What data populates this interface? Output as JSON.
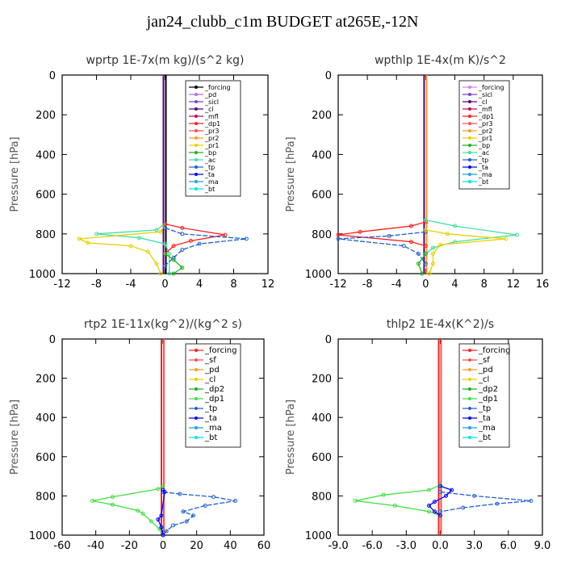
{
  "page": {
    "title": "jan24_clubb_c1m  BUDGET at265E,-12N"
  },
  "chart_data": [
    {
      "type": "line",
      "title": "wprtp   1E-7x(m kg)/(s^2 kg)",
      "ylabel": "Pressure [hPa]",
      "xlim": [
        -12,
        12
      ],
      "ylim": [
        1000,
        0
      ],
      "xticks": [
        "-12",
        "-8",
        "-4",
        "0",
        "4",
        "8"
      ],
      "yticks": [
        "0",
        "200",
        "400",
        "600",
        "800",
        "1000"
      ],
      "legend": [
        "_forcing",
        "_pd",
        "_sicl",
        "_cl",
        "_mfl",
        "_dp1",
        "_pr3",
        "_pr2",
        "_pr1",
        "_bp",
        "_ac",
        "_tp",
        "_ta",
        "_ma",
        "_bt"
      ],
      "colors": [
        "#000000",
        "#b070e0",
        "#7a3fd0",
        "#5a0080",
        "#c0104a",
        "#ff2020",
        "#ff5050",
        "#ff9a20",
        "#e8d000",
        "#20b020",
        "#40e0a0",
        "#2060d0",
        "#0000ff",
        "#20a0e0",
        "#00e8e8"
      ],
      "series": [
        {
          "name": "_ac",
          "points": [
            [
              0,
              750
            ],
            [
              -1,
              780
            ],
            [
              -8,
              800
            ],
            [
              -3,
              820
            ],
            [
              0,
              850
            ],
            [
              0.5,
              900
            ],
            [
              0.5,
              1000
            ]
          ]
        },
        {
          "name": "_pr1",
          "points": [
            [
              0,
              750
            ],
            [
              -0.5,
              790
            ],
            [
              -10,
              825
            ],
            [
              -9,
              845
            ],
            [
              -4,
              860
            ],
            [
              -2,
              890
            ],
            [
              -1,
              950
            ],
            [
              -0.5,
              1000
            ]
          ]
        },
        {
          "name": "_dp1",
          "points": [
            [
              0,
              750
            ],
            [
              2,
              770
            ],
            [
              7,
              805
            ],
            [
              3,
              835
            ],
            [
              1,
              860
            ],
            [
              0,
              900
            ]
          ]
        },
        {
          "name": "_tp",
          "points": [
            [
              0,
              770
            ],
            [
              2,
              800
            ],
            [
              9.5,
              825
            ],
            [
              4,
              850
            ],
            [
              2,
              880
            ],
            [
              1,
              920
            ],
            [
              0,
              960
            ]
          ]
        },
        {
          "name": "_bp",
          "points": [
            [
              0,
              900
            ],
            [
              1,
              930
            ],
            [
              2,
              970
            ],
            [
              1,
              1000
            ]
          ]
        }
      ]
    },
    {
      "type": "line",
      "title": "wpthlp   1E-4x(m K)/s^2",
      "ylabel": "Pressure [hPa]",
      "xlim": [
        -12,
        16
      ],
      "ylim": [
        1000,
        0
      ],
      "xticks": [
        "-12",
        "-8",
        "-4",
        "0",
        "4",
        "8",
        "12",
        "16"
      ],
      "yticks": [
        "0",
        "200",
        "400",
        "600",
        "800",
        "1000"
      ],
      "legend": [
        "_forcing",
        "_sicl",
        "_cl",
        "_mfl",
        "_dp1",
        "_pr3",
        "_pr2",
        "_pr1",
        "_bp",
        "_ac",
        "_tp",
        "_ta",
        "_ma",
        "_bt"
      ],
      "colors": [
        "#e080e0",
        "#7a3fd0",
        "#5a0080",
        "#c0104a",
        "#ff2020",
        "#ff5050",
        "#ff9a20",
        "#e8d000",
        "#20b020",
        "#40e0a0",
        "#2060d0",
        "#0000ff",
        "#20a0e0",
        "#00e8e8"
      ],
      "series": [
        {
          "name": "_dp1",
          "points": [
            [
              0,
              740
            ],
            [
              -2,
              760
            ],
            [
              -9,
              790
            ],
            [
              -12,
              805
            ],
            [
              -2,
              840
            ],
            [
              0,
              860
            ]
          ]
        },
        {
          "name": "_tp",
          "points": [
            [
              0,
              790
            ],
            [
              -5,
              810
            ],
            [
              -12,
              825
            ],
            [
              -3,
              860
            ],
            [
              -1,
              900
            ],
            [
              0,
              950
            ]
          ]
        },
        {
          "name": "_ac",
          "points": [
            [
              0,
              730
            ],
            [
              4,
              760
            ],
            [
              12.5,
              805
            ],
            [
              4,
              840
            ],
            [
              1,
              870
            ],
            [
              0,
              900
            ]
          ]
        },
        {
          "name": "_pr1",
          "points": [
            [
              0,
              780
            ],
            [
              3,
              800
            ],
            [
              11,
              825
            ],
            [
              2,
              855
            ],
            [
              1,
              900
            ],
            [
              1,
              950
            ],
            [
              0.5,
              1000
            ]
          ]
        },
        {
          "name": "_bp",
          "points": [
            [
              0,
              900
            ],
            [
              -1,
              950
            ],
            [
              -0.5,
              1000
            ]
          ]
        }
      ]
    },
    {
      "type": "line",
      "title": "rtp2   1E-11x(kg^2)/(kg^2 s)",
      "ylabel": "Pressure [hPa]",
      "xlim": [
        -60,
        60
      ],
      "ylim": [
        1000,
        0
      ],
      "xticks": [
        "-60",
        "-40",
        "-20",
        "0",
        "20",
        "40",
        "60"
      ],
      "yticks": [
        "0",
        "200",
        "400",
        "600",
        "800",
        "1000"
      ],
      "legend": [
        "_forcing",
        "_sf",
        "_pd",
        "_cl",
        "_dp2",
        "_dp1",
        "_tp",
        "_ta",
        "_ma",
        "_bt"
      ],
      "colors": [
        "#ff2020",
        "#ff5050",
        "#ff9a20",
        "#e8d000",
        "#20b020",
        "#40e040",
        "#2060d0",
        "#0000ff",
        "#20a0e0",
        "#00e8e8"
      ],
      "series": [
        {
          "name": "_dp1",
          "points": [
            [
              0,
              750
            ],
            [
              -3,
              765
            ],
            [
              -30,
              805
            ],
            [
              -42,
              825
            ],
            [
              -30,
              845
            ],
            [
              -15,
              875
            ],
            [
              -12,
              890
            ],
            [
              -7,
              930
            ],
            [
              -2,
              970
            ],
            [
              0,
              1000
            ]
          ]
        },
        {
          "name": "_tp",
          "points": [
            [
              0,
              780
            ],
            [
              10,
              790
            ],
            [
              30,
              805
            ],
            [
              43,
              825
            ],
            [
              25,
              850
            ],
            [
              12,
              880
            ],
            [
              18,
              900
            ],
            [
              14,
              930
            ],
            [
              6,
              950
            ],
            [
              2,
              980
            ],
            [
              0,
              1000
            ]
          ]
        },
        {
          "name": "_ta",
          "points": [
            [
              0,
              770
            ],
            [
              1,
              780
            ],
            [
              -1,
              900
            ],
            [
              -3,
              920
            ],
            [
              -1,
              960
            ],
            [
              0,
              1000
            ]
          ]
        }
      ]
    },
    {
      "type": "line",
      "title": "thlp2   1E-4x(K^2)/s",
      "ylabel": "Pressure [hPa]",
      "xlim": [
        -9,
        9
      ],
      "ylim": [
        1000,
        0
      ],
      "xticks": [
        "-9.0",
        "-6.0",
        "-3.0",
        "0.0",
        "3.0",
        "6.0",
        "9.0"
      ],
      "yticks": [
        "0",
        "200",
        "400",
        "600",
        "800",
        "1000"
      ],
      "legend": [
        "_forcing",
        "_sf",
        "_pd",
        "_cl",
        "_dp2",
        "_dp1",
        "_tp",
        "_ta",
        "_ma",
        "_bt"
      ],
      "colors": [
        "#ff2020",
        "#ff5050",
        "#ff9a20",
        "#e8d000",
        "#20b020",
        "#40e040",
        "#2060d0",
        "#0000ff",
        "#20a0e0",
        "#00e8e8"
      ],
      "series": [
        {
          "name": "_dp1",
          "points": [
            [
              0,
              745
            ],
            [
              -1,
              770
            ],
            [
              -5,
              795
            ],
            [
              -7.5,
              825
            ],
            [
              -4,
              850
            ],
            [
              -1,
              880
            ],
            [
              0,
              900
            ]
          ]
        },
        {
          "name": "_tp",
          "points": [
            [
              0,
              780
            ],
            [
              3,
              800
            ],
            [
              8,
              825
            ],
            [
              5,
              840
            ],
            [
              2,
              860
            ],
            [
              0,
              880
            ]
          ]
        },
        {
          "name": "_ta",
          "points": [
            [
              0,
              750
            ],
            [
              1,
              770
            ],
            [
              0.5,
              800
            ],
            [
              -0.5,
              830
            ],
            [
              -1,
              850
            ],
            [
              -0.5,
              880
            ],
            [
              0,
              900
            ]
          ]
        }
      ]
    }
  ]
}
